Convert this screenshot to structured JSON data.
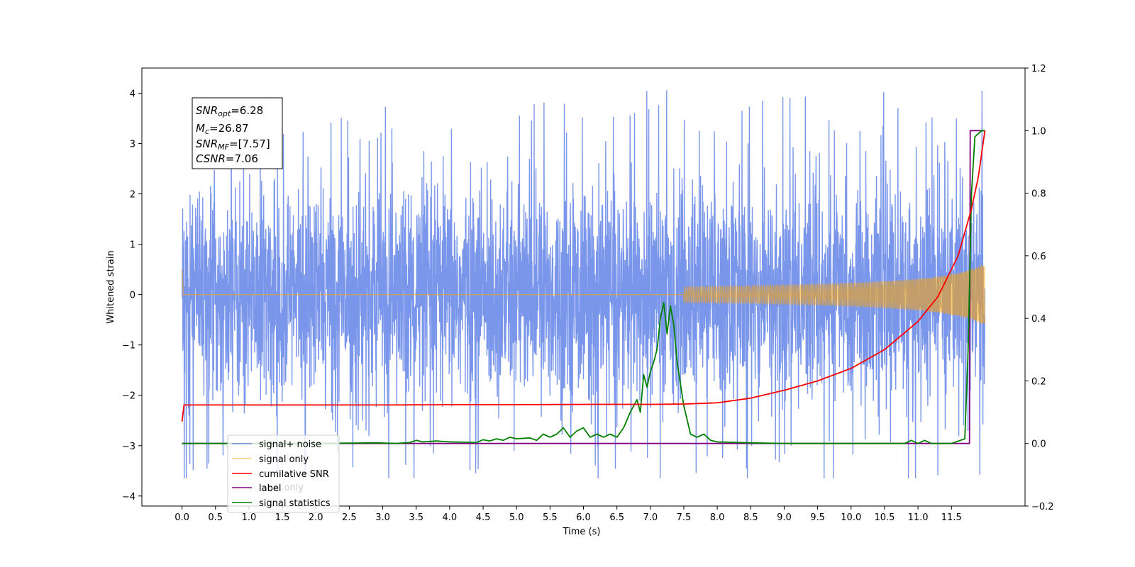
{
  "chart_data": {
    "type": "line",
    "xlabel": "Time (s)",
    "ylabel": "Whitened strain",
    "xlim": [
      -0.6,
      12.6
    ],
    "ylim": [
      -4.2,
      4.5
    ],
    "y2lim": [
      -0.2,
      1.2
    ],
    "x_ticks": [
      "0.0",
      "0.5",
      "1.0",
      "1.5",
      "2.0",
      "2.5",
      "3.0",
      "3.5",
      "4.0",
      "4.5",
      "5.0",
      "5.5",
      "6.0",
      "6.5",
      "7.0",
      "7.5",
      "8.0",
      "8.5",
      "9.0",
      "9.5",
      "10.0",
      "10.5",
      "11.0",
      "11.5"
    ],
    "y_ticks": [
      "4",
      "3",
      "2",
      "1",
      "0",
      "−1",
      "−2",
      "−3",
      "−4"
    ],
    "y2_ticks": [
      "1.2",
      "1.0",
      "0.8",
      "0.6",
      "0.4",
      "0.2",
      "0.0",
      "−0.2"
    ],
    "annotation": {
      "snr_opt": {
        "base": "SNR",
        "sub": "opt",
        "value": "=6.28"
      },
      "mc": {
        "base": "M",
        "sub": "c",
        "value": "=26.87"
      },
      "snr_mf": {
        "base": "SNR",
        "sub": "MF",
        "value": "=[7.57]"
      },
      "csnr": {
        "base": "CSNR",
        "sub": "",
        "value": "=7.06"
      }
    },
    "legend": {
      "placement": "lower-left",
      "entries": [
        {
          "key": "noisy",
          "label": "signal+ noise",
          "color": "#4169e1"
        },
        {
          "key": "signal",
          "label": "signal only",
          "color": "#ffa500"
        },
        {
          "key": "csnr",
          "label": "cumilative SNR",
          "color": "#ff0000"
        },
        {
          "key": "label",
          "label": "label",
          "color": "#800080"
        },
        {
          "key": "stats",
          "label": "signal statistics",
          "color": "#008000"
        }
      ],
      "overlapped_text": "label only"
    },
    "series": [
      {
        "key": "noisy",
        "axis": "left",
        "color": "#4169e1",
        "opacity": 0.7,
        "description": "whitened strain, gaussian noise (sd ~1) with spikes up to 4.1 / -3.65",
        "x_range": [
          0.0,
          12.0
        ]
      },
      {
        "key": "signal",
        "axis": "left",
        "color": "#ffa500",
        "opacity": 0.55,
        "x_start": 0.0,
        "x_end": 12.0,
        "amp_start": 0.5,
        "amp_end": 0.7,
        "visible_from": 7.5
      },
      {
        "key": "csnr",
        "axis": "right",
        "x": [
          0.0,
          0.01,
          1.0,
          2.0,
          3.0,
          4.0,
          5.0,
          6.0,
          7.0,
          7.5,
          8.0,
          8.5,
          9.0,
          9.5,
          10.0,
          10.5,
          11.0,
          11.3,
          11.6,
          11.8,
          11.9,
          12.0
        ],
        "y": [
          0.07,
          0.123,
          0.123,
          0.123,
          0.123,
          0.124,
          0.124,
          0.125,
          0.125,
          0.126,
          0.13,
          0.145,
          0.17,
          0.2,
          0.24,
          0.3,
          0.39,
          0.47,
          0.6,
          0.75,
          0.85,
          1.0
        ]
      },
      {
        "key": "label",
        "axis": "right",
        "x": [
          0.0,
          11.77,
          11.78,
          11.99,
          12.0
        ],
        "y": [
          0.0,
          0.0,
          1.0,
          1.0,
          1.0
        ]
      },
      {
        "key": "stats",
        "axis": "right",
        "x": [
          0.0,
          1.0,
          2.0,
          2.9,
          3.2,
          3.4,
          3.5,
          3.6,
          3.8,
          4.0,
          4.2,
          4.4,
          4.5,
          4.6,
          4.7,
          4.8,
          4.9,
          5.0,
          5.2,
          5.3,
          5.4,
          5.5,
          5.6,
          5.7,
          5.8,
          5.9,
          6.0,
          6.1,
          6.2,
          6.3,
          6.4,
          6.5,
          6.6,
          6.7,
          6.8,
          6.85,
          6.9,
          6.95,
          7.0,
          7.05,
          7.1,
          7.15,
          7.2,
          7.25,
          7.3,
          7.35,
          7.4,
          7.5,
          7.6,
          7.7,
          7.8,
          7.9,
          8.0,
          8.5,
          9.0,
          10.0,
          10.8,
          10.9,
          11.0,
          11.1,
          11.2,
          11.3,
          11.5,
          11.7,
          11.75,
          11.8,
          11.85,
          11.9,
          11.95,
          12.0
        ],
        "y": [
          0.0,
          0.0,
          0.0,
          0.002,
          0.0,
          0.003,
          0.01,
          0.005,
          0.008,
          0.005,
          0.004,
          0.003,
          0.012,
          0.008,
          0.015,
          0.01,
          0.02,
          0.015,
          0.018,
          0.01,
          0.03,
          0.02,
          0.03,
          0.05,
          0.02,
          0.04,
          0.05,
          0.02,
          0.03,
          0.02,
          0.03,
          0.02,
          0.05,
          0.1,
          0.14,
          0.1,
          0.22,
          0.18,
          0.23,
          0.26,
          0.3,
          0.4,
          0.45,
          0.35,
          0.44,
          0.38,
          0.26,
          0.12,
          0.03,
          0.02,
          0.03,
          0.01,
          0.005,
          0.002,
          0.0,
          0.0,
          0.0,
          0.01,
          0.0,
          0.01,
          0.0,
          0.0,
          0.0,
          0.015,
          0.3,
          0.8,
          0.98,
          0.99,
          1.0,
          1.0
        ]
      }
    ]
  }
}
